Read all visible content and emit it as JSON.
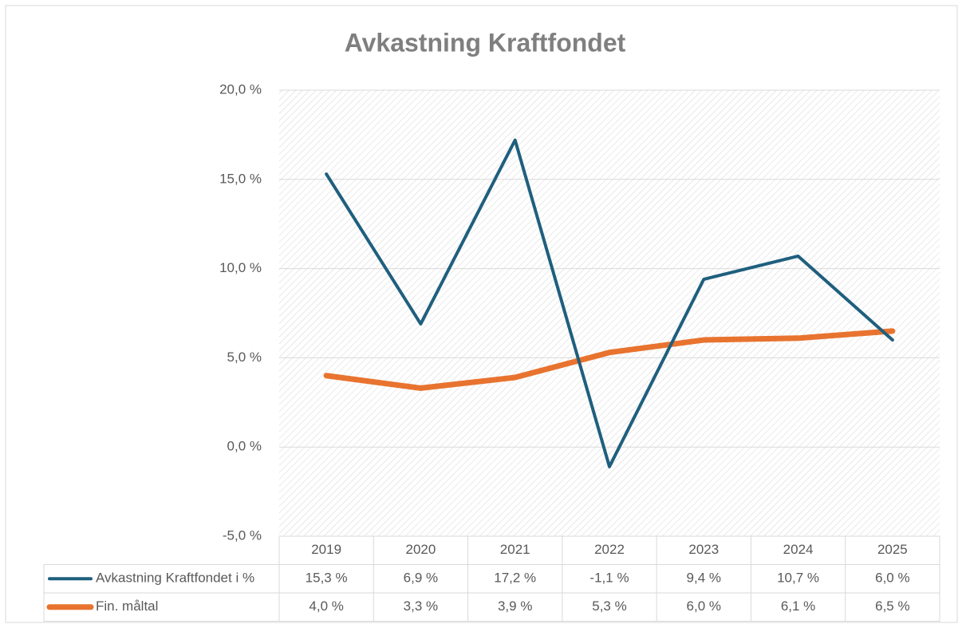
{
  "chart_data": {
    "type": "line",
    "title": "Avkastning Kraftfondet",
    "categories": [
      "2019",
      "2020",
      "2021",
      "2022",
      "2023",
      "2024",
      "2025"
    ],
    "series": [
      {
        "name": "Avkastning Kraftfondet i %",
        "color": "#1f5f7e",
        "values": [
          15.3,
          6.9,
          17.2,
          -1.1,
          9.4,
          10.7,
          6.0
        ],
        "value_labels": [
          "15,3 %",
          "6,9 %",
          "17,2 %",
          "-1,1 %",
          "9,4 %",
          "10,7 %",
          "6,0 %"
        ]
      },
      {
        "name": "Fin. måltal",
        "color": "#e8732f",
        "values": [
          4.0,
          3.3,
          3.9,
          5.3,
          6.0,
          6.1,
          6.5
        ],
        "value_labels": [
          "4,0 %",
          "3,3 %",
          "3,9 %",
          "5,3 %",
          "6,0 %",
          "6,1 %",
          "6,5 %"
        ]
      }
    ],
    "ylim": [
      -5,
      20
    ],
    "yticks": [
      {
        "value": -5,
        "label": "-5,0 %"
      },
      {
        "value": 0,
        "label": "0,0 %"
      },
      {
        "value": 5,
        "label": "5,0 %"
      },
      {
        "value": 10,
        "label": "10,0 %"
      },
      {
        "value": 15,
        "label": "15,0 %"
      },
      {
        "value": 20,
        "label": "20,0 %"
      }
    ],
    "grid": true
  }
}
